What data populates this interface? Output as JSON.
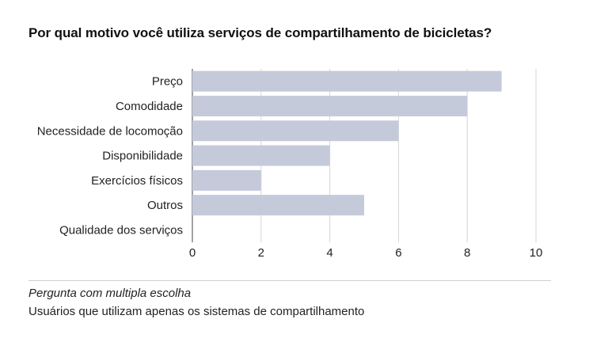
{
  "chart_data": {
    "type": "bar",
    "orientation": "horizontal",
    "title": "Por qual motivo você utiliza serviços de compartilhamento de bicicletas?",
    "categories": [
      "Preço",
      "Comodidade",
      "Necessidade de locomoção",
      "Disponibilidade",
      "Exercícios físicos",
      "Outros",
      "Qualidade dos serviços"
    ],
    "values": [
      9,
      8,
      6,
      4,
      2,
      5,
      0
    ],
    "xlim": [
      0,
      10
    ],
    "xticks": [
      "0",
      "2",
      "4",
      "6",
      "8",
      "10"
    ],
    "grid": true,
    "bar_color": "#c5cadb"
  },
  "notes": {
    "question_type": "Pergunta com multipla escolha",
    "audience": "Usuários que utilizam apenas os sistemas de compartilhamento"
  }
}
